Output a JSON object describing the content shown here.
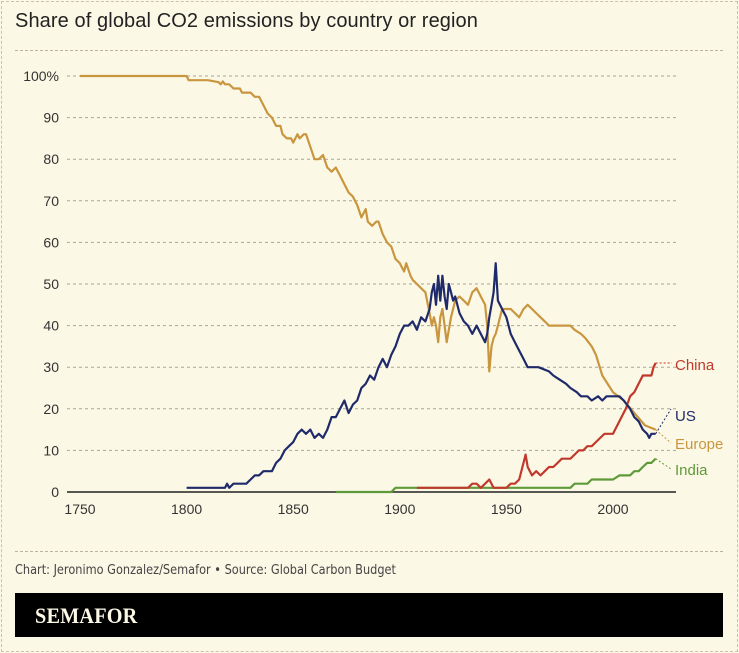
{
  "title": "Share of global CO2 emissions by country or region",
  "credit": "Chart: Jeronimo Gonzalez/Semafor • Source: Global Carbon Budget",
  "brand": "SEMAFOR",
  "colors": {
    "background": "#fcf8e6",
    "Europe": "#c9963f",
    "US": "#1f2a6b",
    "China": "#c0392b",
    "India": "#5f9a3a",
    "axis": "#222222",
    "grid": "#a9a596"
  },
  "chart_data": {
    "type": "line",
    "title": "Share of global CO2 emissions by country or region",
    "xlabel": "",
    "ylabel": "",
    "xlim": [
      1750,
      2021
    ],
    "ylim": [
      0,
      100
    ],
    "x_ticks": [
      1750,
      1800,
      1850,
      1900,
      1950,
      2000
    ],
    "y_ticks": [
      0,
      10,
      20,
      30,
      40,
      50,
      60,
      70,
      80,
      90,
      100
    ],
    "y_tick_labels": [
      "0",
      "10",
      "20",
      "30",
      "40",
      "50",
      "60",
      "70",
      "80",
      "90",
      "100%"
    ],
    "grid": "horizontal dashed",
    "legend": "inline labels at right end of lines",
    "series": [
      {
        "name": "Europe",
        "x": [
          1750,
          1800,
          1801,
          1810,
          1815,
          1816,
          1817,
          1818,
          1820,
          1822,
          1825,
          1826,
          1830,
          1832,
          1834,
          1836,
          1838,
          1840,
          1842,
          1844,
          1845,
          1847,
          1849,
          1850,
          1852,
          1853,
          1855,
          1856,
          1858,
          1860,
          1862,
          1864,
          1866,
          1868,
          1870,
          1872,
          1874,
          1876,
          1878,
          1880,
          1882,
          1884,
          1885,
          1887,
          1889,
          1890,
          1892,
          1894,
          1896,
          1898,
          1900,
          1902,
          1903,
          1905,
          1906,
          1908,
          1910,
          1912,
          1914,
          1915,
          1916,
          1917,
          1918,
          1919,
          1920,
          1921,
          1922,
          1924,
          1926,
          1928,
          1930,
          1932,
          1934,
          1936,
          1938,
          1940,
          1941,
          1942,
          1943,
          1944,
          1945,
          1946,
          1947,
          1948,
          1950,
          1952,
          1954,
          1956,
          1958,
          1960,
          1962,
          1964,
          1966,
          1968,
          1970,
          1975,
          1980,
          1982,
          1985,
          1987,
          1990,
          1992,
          1995,
          2000,
          2005,
          2010,
          2015,
          2020
        ],
        "values": [
          100,
          100,
          99,
          99,
          98.5,
          98,
          98.7,
          98,
          98,
          97,
          97,
          96,
          96,
          95,
          95,
          93,
          91,
          90,
          88,
          88,
          86,
          85,
          85,
          84,
          86,
          85,
          86,
          86,
          83,
          80,
          80,
          81,
          78,
          77,
          78,
          76,
          74,
          72,
          71,
          69,
          66,
          68,
          65,
          64,
          65,
          65,
          62,
          60,
          59,
          56,
          55,
          53,
          55,
          52,
          51,
          50,
          49,
          48,
          43,
          40,
          42,
          40,
          36,
          42,
          44,
          40,
          36,
          42,
          46,
          47,
          46,
          45,
          48,
          49,
          47,
          45,
          40,
          29,
          35,
          37,
          38,
          40,
          42,
          44,
          44,
          44,
          43,
          42,
          44,
          45,
          44,
          43,
          42,
          41,
          40,
          40,
          40,
          39,
          38,
          37,
          35,
          33,
          28,
          24,
          22,
          19,
          16,
          15
        ]
      },
      {
        "name": "US",
        "x": [
          1800,
          1802,
          1804,
          1806,
          1808,
          1810,
          1812,
          1814,
          1816,
          1818,
          1819,
          1820,
          1822,
          1824,
          1826,
          1828,
          1830,
          1832,
          1834,
          1836,
          1838,
          1840,
          1842,
          1844,
          1846,
          1848,
          1850,
          1852,
          1854,
          1856,
          1858,
          1860,
          1862,
          1864,
          1866,
          1868,
          1870,
          1872,
          1874,
          1876,
          1878,
          1880,
          1882,
          1884,
          1886,
          1888,
          1890,
          1892,
          1894,
          1896,
          1898,
          1900,
          1902,
          1904,
          1906,
          1908,
          1910,
          1912,
          1914,
          1915,
          1916,
          1917,
          1918,
          1919,
          1920,
          1921,
          1922,
          1923,
          1924,
          1925,
          1926,
          1928,
          1930,
          1932,
          1934,
          1936,
          1938,
          1940,
          1941,
          1942,
          1943,
          1944,
          1945,
          1946,
          1948,
          1950,
          1952,
          1954,
          1956,
          1958,
          1960,
          1965,
          1970,
          1972,
          1975,
          1978,
          1980,
          1983,
          1985,
          1988,
          1990,
          1993,
          1995,
          1997,
          2000,
          2003,
          2005,
          2008,
          2010,
          2012,
          2014,
          2016,
          2017,
          2018,
          2020
        ],
        "values": [
          1,
          1,
          1,
          1,
          1,
          1,
          1,
          1,
          1,
          1,
          2,
          1,
          2,
          2,
          2,
          2,
          3,
          4,
          4,
          5,
          5,
          5,
          7,
          8,
          10,
          11,
          12,
          14,
          15,
          14,
          15,
          13,
          14,
          13,
          15,
          18,
          18,
          20,
          22,
          19,
          21,
          22,
          25,
          26,
          28,
          27,
          30,
          32,
          30,
          33,
          35,
          38,
          40,
          40,
          41,
          39,
          42,
          41,
          44,
          48,
          50,
          45,
          52,
          46,
          52,
          47,
          44,
          50,
          48,
          46,
          47,
          43,
          41,
          40,
          38,
          40,
          38,
          36,
          38,
          42,
          45,
          48,
          55,
          46,
          44,
          42,
          38,
          36,
          34,
          32,
          30,
          30,
          29,
          28,
          27,
          26,
          25,
          24,
          23,
          23,
          22,
          23,
          22,
          23,
          23,
          23,
          22,
          20,
          18,
          17,
          15,
          14,
          13,
          14,
          14
        ]
      },
      {
        "name": "China",
        "x": [
          1908,
          1910,
          1915,
          1920,
          1925,
          1930,
          1932,
          1934,
          1936,
          1938,
          1940,
          1942,
          1944,
          1946,
          1948,
          1950,
          1952,
          1954,
          1956,
          1958,
          1959,
          1960,
          1962,
          1964,
          1966,
          1968,
          1970,
          1972,
          1974,
          1976,
          1978,
          1980,
          1982,
          1984,
          1986,
          1988,
          1990,
          1992,
          1994,
          1996,
          1998,
          2000,
          2002,
          2004,
          2006,
          2008,
          2010,
          2012,
          2014,
          2016,
          2018,
          2019,
          2020
        ],
        "values": [
          1,
          1,
          1,
          1,
          1,
          1,
          1,
          2,
          2,
          1,
          2,
          3,
          1,
          1,
          1,
          1,
          2,
          2,
          3,
          7,
          9,
          6,
          4,
          5,
          4,
          5,
          6,
          6,
          7,
          8,
          8,
          8,
          9,
          10,
          10,
          11,
          11,
          12,
          13,
          14,
          14,
          14,
          16,
          18,
          20,
          23,
          24,
          26,
          28,
          28,
          28,
          30,
          31
        ]
      },
      {
        "name": "India",
        "x": [
          1870,
          1880,
          1890,
          1896,
          1898,
          1900,
          1910,
          1920,
          1930,
          1940,
          1950,
          1960,
          1970,
          1980,
          1982,
          1984,
          1986,
          1988,
          1990,
          1993,
          1995,
          2000,
          2003,
          2005,
          2008,
          2010,
          2012,
          2014,
          2016,
          2018,
          2020
        ],
        "values": [
          0,
          0,
          0,
          0,
          1,
          1,
          1,
          1,
          1,
          1,
          1,
          1,
          1,
          1,
          2,
          2,
          2,
          2,
          3,
          3,
          3,
          3,
          4,
          4,
          4,
          5,
          5,
          6,
          7,
          7,
          8
        ]
      }
    ],
    "annotations": [
      {
        "label": "China",
        "end_value": 31
      },
      {
        "label": "US",
        "end_value": 14
      },
      {
        "label": "Europe",
        "end_value": 15
      },
      {
        "label": "India",
        "end_value": 8
      }
    ]
  }
}
